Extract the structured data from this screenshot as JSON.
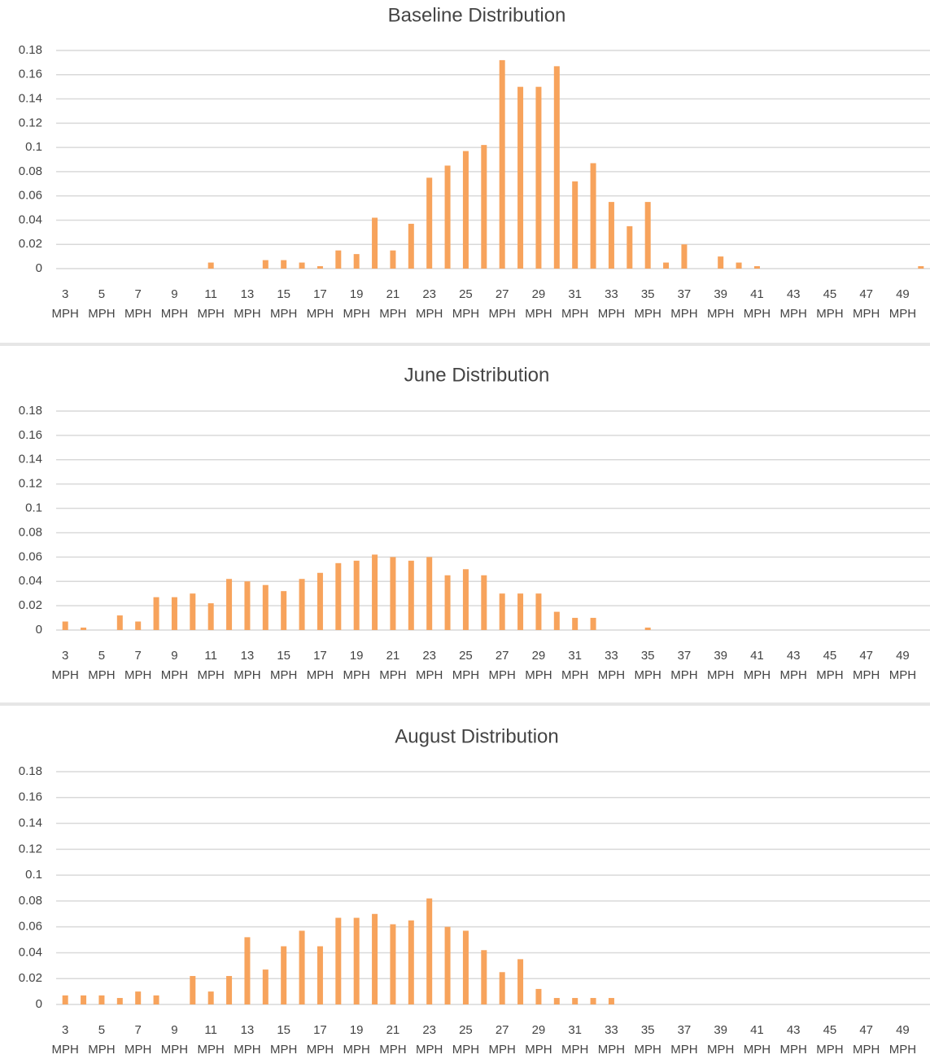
{
  "chart_data": [
    {
      "type": "bar",
      "title": "Baseline Distribution",
      "color": "#f7a35c",
      "grid": true,
      "categories": [
        "3 MPH",
        null,
        "5 MPH",
        null,
        "7 MPH",
        null,
        "9 MPH",
        null,
        "11 MPH",
        null,
        "13 MPH",
        null,
        "15 MPH",
        null,
        "17 MPH",
        null,
        "19 MPH",
        null,
        "21 MPH",
        null,
        "23 MPH",
        null,
        "25 MPH",
        null,
        "27 MPH",
        null,
        "29 MPH",
        null,
        "31 MPH",
        null,
        "33 MPH",
        null,
        "35 MPH",
        null,
        "37 MPH",
        null,
        "39 MPH",
        null,
        "41 MPH",
        null,
        "43 MPH",
        null,
        "45 MPH",
        null,
        "47 MPH",
        null,
        "49 MPH",
        null
      ],
      "values": [
        0,
        0,
        0,
        0,
        0,
        0,
        0,
        0,
        0.005,
        0,
        0,
        0.007,
        0.007,
        0.005,
        0.002,
        0.015,
        0.012,
        0.042,
        0.015,
        0.037,
        0.075,
        0.085,
        0.097,
        0.102,
        0.172,
        0.15,
        0.15,
        0.167,
        0.072,
        0.087,
        0.055,
        0.035,
        0.055,
        0.005,
        0.02,
        0,
        0.01,
        0.005,
        0.002,
        0,
        0,
        0,
        0,
        0,
        0,
        0,
        0,
        0.002
      ],
      "ylim": [
        0,
        0.18
      ],
      "yticks": [
        0,
        0.02,
        0.04,
        0.06,
        0.08,
        0.1,
        0.12,
        0.14,
        0.16,
        0.18
      ]
    },
    {
      "type": "bar",
      "title": "June Distribution",
      "color": "#f7a35c",
      "grid": true,
      "categories": [
        "3 MPH",
        null,
        "5 MPH",
        null,
        "7 MPH",
        null,
        "9 MPH",
        null,
        "11 MPH",
        null,
        "13 MPH",
        null,
        "15 MPH",
        null,
        "17 MPH",
        null,
        "19 MPH",
        null,
        "21 MPH",
        null,
        "23 MPH",
        null,
        "25 MPH",
        null,
        "27 MPH",
        null,
        "29 MPH",
        null,
        "31 MPH",
        null,
        "33 MPH",
        null,
        "35 MPH",
        null,
        "37 MPH",
        null,
        "39 MPH",
        null,
        "41 MPH",
        null,
        "43 MPH",
        null,
        "45 MPH",
        null,
        "47 MPH",
        null,
        "49 MPH",
        null
      ],
      "values": [
        0.007,
        0.002,
        0,
        0.012,
        0.007,
        0.027,
        0.027,
        0.03,
        0.022,
        0.042,
        0.04,
        0.037,
        0.032,
        0.042,
        0.047,
        0.055,
        0.057,
        0.062,
        0.06,
        0.057,
        0.06,
        0.045,
        0.05,
        0.045,
        0.03,
        0.03,
        0.03,
        0.015,
        0.01,
        0.01,
        0,
        0,
        0.002,
        0,
        0,
        0,
        0,
        0,
        0,
        0,
        0,
        0,
        0,
        0,
        0,
        0,
        0,
        0
      ],
      "ylim": [
        0,
        0.18
      ],
      "yticks": [
        0,
        0.02,
        0.04,
        0.06,
        0.08,
        0.1,
        0.12,
        0.14,
        0.16,
        0.18
      ]
    },
    {
      "type": "bar",
      "title": "August Distribution",
      "color": "#f7a35c",
      "grid": true,
      "categories": [
        "3 MPH",
        null,
        "5 MPH",
        null,
        "7 MPH",
        null,
        "9 MPH",
        null,
        "11 MPH",
        null,
        "13 MPH",
        null,
        "15 MPH",
        null,
        "17 MPH",
        null,
        "19 MPH",
        null,
        "21 MPH",
        null,
        "23 MPH",
        null,
        "25 MPH",
        null,
        "27 MPH",
        null,
        "29 MPH",
        null,
        "31 MPH",
        null,
        "33 MPH",
        null,
        "35 MPH",
        null,
        "37 MPH",
        null,
        "39 MPH",
        null,
        "41 MPH",
        null,
        "43 MPH",
        null,
        "45 MPH",
        null,
        "47 MPH",
        null,
        "49 MPH",
        null
      ],
      "values": [
        0.007,
        0.007,
        0.007,
        0.005,
        0.01,
        0.007,
        0,
        0.022,
        0.01,
        0.022,
        0.052,
        0.027,
        0.045,
        0.057,
        0.045,
        0.067,
        0.067,
        0.07,
        0.062,
        0.065,
        0.082,
        0.06,
        0.057,
        0.042,
        0.025,
        0.035,
        0.012,
        0.005,
        0.005,
        0.005,
        0.005,
        0,
        0,
        0,
        0,
        0,
        0,
        0,
        0,
        0,
        0,
        0,
        0,
        0,
        0,
        0,
        0,
        0
      ],
      "ylim": [
        0,
        0.18
      ],
      "yticks": [
        0,
        0.02,
        0.04,
        0.06,
        0.08,
        0.1,
        0.12,
        0.14,
        0.16,
        0.18
      ]
    }
  ]
}
